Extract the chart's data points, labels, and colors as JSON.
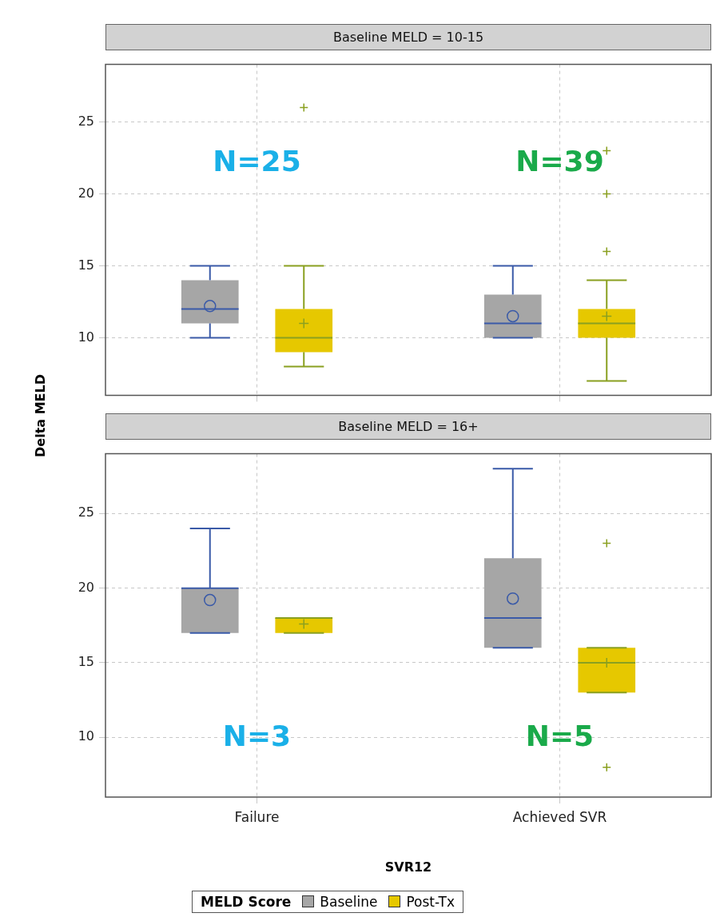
{
  "chart_data": [
    {
      "type": "box",
      "title": "Baseline MELD = 10-15",
      "ylabel": "Delta MELD",
      "categories": [
        null,
        null
      ],
      "ylim": [
        6,
        29
      ],
      "yticks": [
        10,
        15,
        20,
        25
      ],
      "grid": true,
      "tick_labels": "y",
      "legend": "bottom",
      "legend_title": "MELD Score",
      "series": [
        {
          "name": "Baseline",
          "color": "#a6a6a6",
          "boxes": [
            {
              "low": 10,
              "q1": 11,
              "median": 12,
              "q3": 14,
              "high": 15,
              "mean": 12.2
            },
            {
              "low": 10,
              "q1": 10,
              "median": 11,
              "q3": 13,
              "high": 15,
              "mean": 11.5
            }
          ]
        },
        {
          "name": "Post-Tx",
          "color": "#e6c800",
          "boxes": [
            {
              "low": 8,
              "q1": 9,
              "median": 10,
              "q3": 12,
              "high": 15,
              "mean": 11,
              "outliers": [
                26
              ]
            },
            {
              "low": 7,
              "q1": 10,
              "median": 11,
              "q3": 12,
              "high": 14,
              "mean": 11.5,
              "outliers": [
                16,
                20,
                23
              ]
            }
          ]
        }
      ],
      "annotations": [
        "N=25",
        "N=39"
      ]
    },
    {
      "type": "box",
      "title": "Baseline MELD = 16+",
      "xlabel": "SVR12",
      "categories": [
        "Failure",
        "Achieved SVR"
      ],
      "ylim": [
        6,
        29
      ],
      "yticks": [
        10,
        15,
        20,
        25
      ],
      "grid": true,
      "series": [
        {
          "color": "#a6a6a6",
          "boxes": [
            {
              "low": 17,
              "q1": 17,
              "median": 20,
              "q3": 20,
              "high": 24,
              "mean": 19.2
            },
            {
              "low": 16,
              "q1": 16,
              "median": 18,
              "q3": 22,
              "high": 28,
              "mean": 19.3
            }
          ]
        },
        {
          "color": "#e6c800",
          "boxes": [
            {
              "low": 17,
              "q1": 17,
              "median": 18,
              "q3": 18,
              "high": 18,
              "mean": 17.6
            },
            {
              "low": 13,
              "q1": 13,
              "median": 15,
              "q3": 16,
              "high": 16,
              "mean": 15,
              "outliers": [
                23,
                8
              ]
            }
          ]
        }
      ],
      "annotations": [
        "N=3",
        "N=5"
      ]
    }
  ]
}
